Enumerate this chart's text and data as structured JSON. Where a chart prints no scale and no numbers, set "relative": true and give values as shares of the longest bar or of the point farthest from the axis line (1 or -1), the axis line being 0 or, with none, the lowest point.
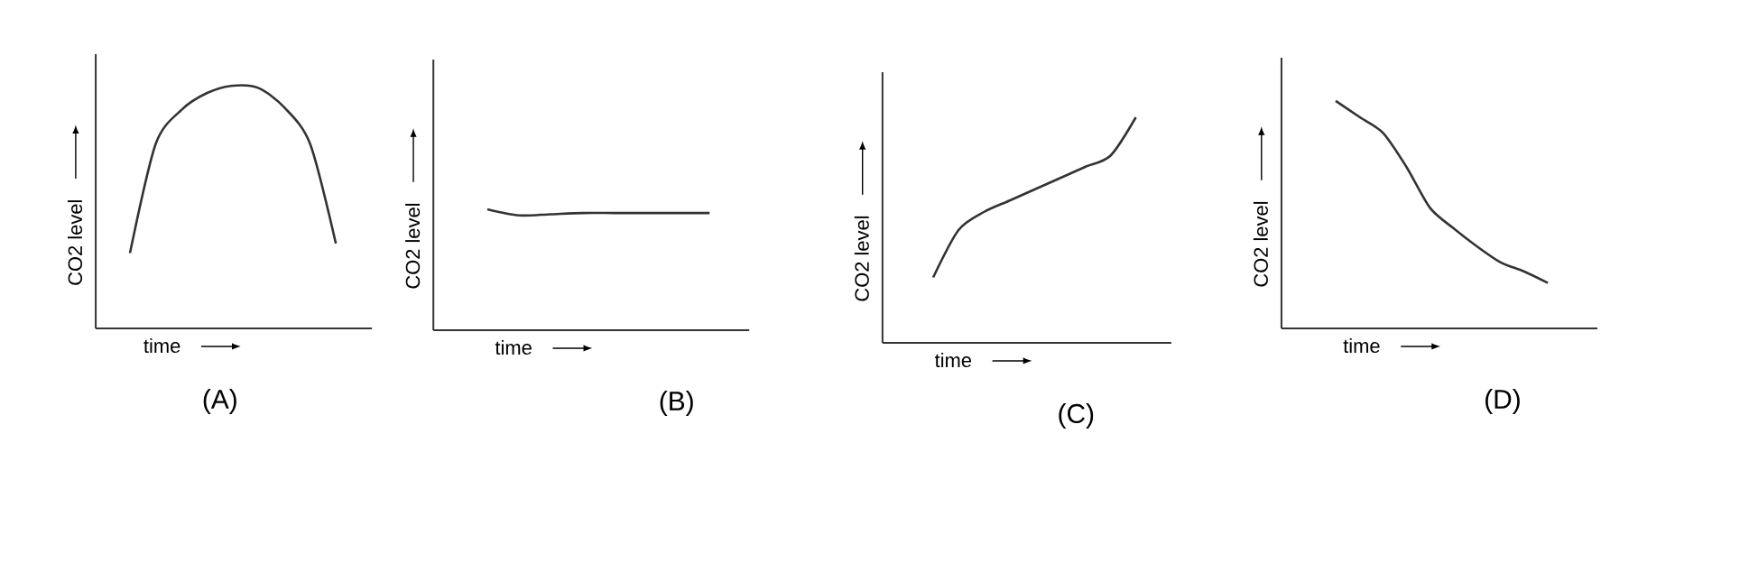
{
  "chart_data": [
    {
      "type": "line",
      "title": "(A)",
      "xlabel": "time",
      "ylabel": "CO2 level",
      "categories": [
        null,
        null,
        null,
        null,
        null,
        null,
        null,
        null,
        null
      ],
      "values": [
        0.31,
        0.76,
        0.9,
        0.97,
        1,
        0.99,
        0.91,
        0.76,
        0.35
      ],
      "color": "#333333",
      "relative": true
    },
    {
      "type": "line",
      "title": "(B)",
      "xlabel": "time",
      "ylabel": "CO2 level",
      "categories": [
        null,
        null,
        null,
        null,
        null,
        null,
        null,
        null
      ],
      "values": [
        1,
        0.95,
        0.96,
        0.97,
        0.97,
        0.97,
        0.97,
        0.97
      ],
      "color": "#333333",
      "relative": true
    },
    {
      "type": "line",
      "title": "(C)",
      "xlabel": "time",
      "ylabel": "CO2 level",
      "categories": [
        null,
        null,
        null,
        null,
        null,
        null,
        null,
        null,
        null
      ],
      "values": [
        0.29,
        0.5,
        0.58,
        0.63,
        0.68,
        0.73,
        0.78,
        0.83,
        1
      ],
      "color": "#333333",
      "relative": true
    },
    {
      "type": "line",
      "title": "(D)",
      "xlabel": "time",
      "ylabel": "CO2 level",
      "categories": [
        null,
        null,
        null,
        null,
        null,
        null,
        null,
        null,
        null,
        null
      ],
      "values": [
        1,
        0.93,
        0.86,
        0.71,
        0.53,
        0.44,
        0.36,
        0.29,
        0.25,
        0.2
      ],
      "color": "#333333",
      "relative": true
    }
  ]
}
